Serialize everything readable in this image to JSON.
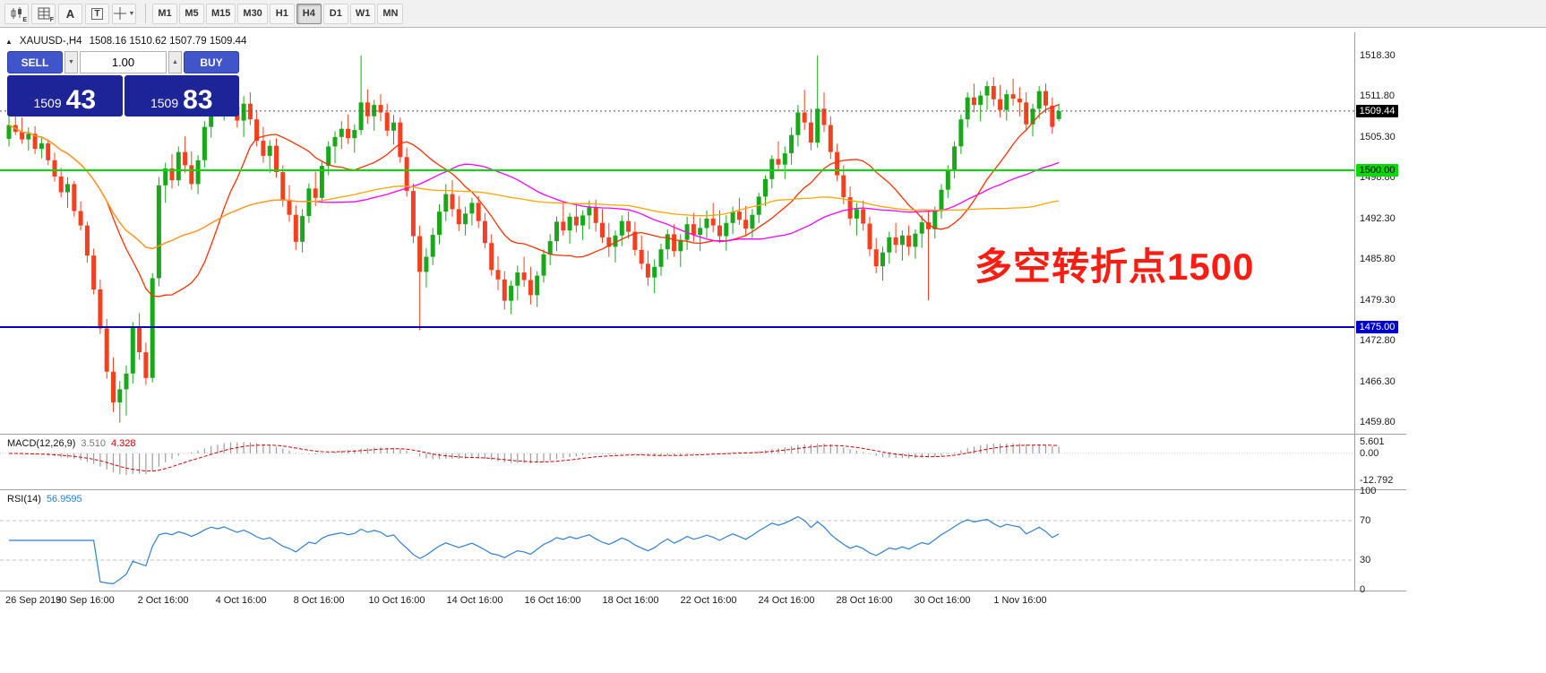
{
  "icons": {
    "marker_up": "▲",
    "dropdown": "▼",
    "spin_down": "▼",
    "spin_up": "▲"
  },
  "toolbar": {
    "tools": [
      {
        "name": "candlestick-chart-icon",
        "badge": "E"
      },
      {
        "name": "grid-icon",
        "badge": "F"
      },
      {
        "name": "font-tool-icon",
        "label": "A"
      },
      {
        "name": "text-label-tool-icon",
        "label": "T"
      },
      {
        "name": "crosshair-tool-icon",
        "label": ""
      }
    ],
    "timeframes": [
      "M1",
      "M5",
      "M15",
      "M30",
      "H1",
      "H4",
      "D1",
      "W1",
      "MN"
    ],
    "active_timeframe": "H4"
  },
  "chart_header": {
    "symbol": "XAUUSD-,H4",
    "ohlc": "1508.16 1510.62 1507.79 1509.44"
  },
  "trade_panel": {
    "sell_label": "SELL",
    "buy_label": "BUY",
    "volume": "1.00",
    "bid_main": "1509",
    "bid_pips": "43",
    "ask_main": "1509",
    "ask_pips": "83"
  },
  "annotation": {
    "text": "多空转折点1500",
    "color": "#fb1c12"
  },
  "price_scale": {
    "ticks": [
      "1518.30",
      "1511.80",
      "1505.30",
      "1498.80",
      "1492.30",
      "1485.80",
      "1479.30",
      "1472.80",
      "1466.30",
      "1459.80"
    ],
    "current_badge": {
      "text": "1509.44",
      "bg": "#000000",
      "fg": "#ffffff"
    },
    "green_badge": {
      "text": "1500.00",
      "bg": "#00dc00",
      "fg": "#000000"
    },
    "blue_badge": {
      "text": "1475.00",
      "bg": "#0000cc",
      "fg": "#ffffff"
    }
  },
  "macd_panel": {
    "label": "MACD(12,26,9)",
    "main_value": "3.510",
    "signal_value": "4.328",
    "scale": [
      "5.601",
      "0.00",
      "-12.792"
    ]
  },
  "rsi_panel": {
    "label": "RSI(14)",
    "value": "56.9595",
    "scale": [
      "100",
      "70",
      "30",
      "0"
    ]
  },
  "time_axis": {
    "labels": [
      "26 Sep 2019",
      "30 Sep 16:00",
      "2 Oct 16:00",
      "4 Oct 16:00",
      "8 Oct 16:00",
      "10 Oct 16:00",
      "14 Oct 16:00",
      "16 Oct 16:00",
      "18 Oct 16:00",
      "22 Oct 16:00",
      "24 Oct 16:00",
      "28 Oct 16:00",
      "30 Oct 16:00",
      "1 Nov 16:00"
    ]
  },
  "chart_data": {
    "type": "candlestick",
    "symbol": "XAUUSD-",
    "timeframe": "H4",
    "current_price": 1509.44,
    "ohlc_current": {
      "open": 1508.16,
      "high": 1510.62,
      "low": 1507.79,
      "close": 1509.44
    },
    "y_axis": {
      "min": 1458.3,
      "max": 1521.7,
      "tick_step": 6.5
    },
    "colors": {
      "up": "#19a819",
      "down": "#f4401f"
    },
    "horizontal_lines": [
      {
        "price": 1500.0,
        "color": "#00dc00",
        "label": "1500.00"
      },
      {
        "price": 1475.0,
        "color": "#0000bb",
        "label": "1475.00"
      }
    ],
    "moving_averages": [
      {
        "name": "ma-fast",
        "window": 16,
        "color": "#ff3000"
      },
      {
        "name": "ma-medium",
        "window": 48,
        "color": "#ff00ff"
      },
      {
        "name": "ma-slow",
        "window": 96,
        "color": "#ffa500"
      }
    ],
    "macd": {
      "params": "12,26,9",
      "main": 3.51,
      "signal": 4.328,
      "range": [
        -12.792,
        5.601
      ]
    },
    "rsi": {
      "period": 14,
      "value": 56.9595,
      "levels": [
        70,
        30
      ],
      "range": [
        0,
        100
      ],
      "color": "#2f80d0"
    },
    "candles": [
      [
        1505.0,
        1510.6,
        1503.8,
        1507.2
      ],
      [
        1507.2,
        1509.8,
        1505.6,
        1506.1
      ],
      [
        1506.1,
        1508.4,
        1504.2,
        1504.9
      ],
      [
        1504.9,
        1506.8,
        1503.1,
        1505.8
      ],
      [
        1505.8,
        1507.0,
        1502.6,
        1503.4
      ],
      [
        1503.4,
        1505.2,
        1501.9,
        1504.3
      ],
      [
        1504.3,
        1504.9,
        1500.8,
        1501.6
      ],
      [
        1501.6,
        1502.8,
        1498.2,
        1499.0
      ],
      [
        1499.0,
        1500.4,
        1495.7,
        1496.5
      ],
      [
        1496.5,
        1498.9,
        1494.0,
        1497.8
      ],
      [
        1497.8,
        1498.3,
        1492.6,
        1493.5
      ],
      [
        1493.5,
        1495.0,
        1490.4,
        1491.2
      ],
      [
        1491.2,
        1491.8,
        1485.3,
        1486.4
      ],
      [
        1486.4,
        1487.5,
        1480.2,
        1481.0
      ],
      [
        1481.0,
        1482.6,
        1473.9,
        1474.8
      ],
      [
        1474.8,
        1476.3,
        1466.8,
        1467.9
      ],
      [
        1467.9,
        1470.2,
        1461.5,
        1463.0
      ],
      [
        1463.0,
        1466.4,
        1459.8,
        1465.1
      ],
      [
        1465.1,
        1468.9,
        1460.9,
        1467.6
      ],
      [
        1467.6,
        1475.8,
        1466.0,
        1474.9
      ],
      [
        1474.9,
        1477.2,
        1469.8,
        1471.0
      ],
      [
        1471.0,
        1472.5,
        1465.8,
        1466.9
      ],
      [
        1466.9,
        1483.6,
        1466.2,
        1482.8
      ],
      [
        1482.8,
        1498.9,
        1481.5,
        1497.6
      ],
      [
        1497.6,
        1501.2,
        1494.8,
        1500.3
      ],
      [
        1500.3,
        1502.6,
        1497.1,
        1498.4
      ],
      [
        1498.4,
        1503.8,
        1497.5,
        1502.9
      ],
      [
        1502.9,
        1505.4,
        1499.6,
        1500.8
      ],
      [
        1500.8,
        1503.0,
        1496.9,
        1497.8
      ],
      [
        1497.8,
        1502.4,
        1496.2,
        1501.6
      ],
      [
        1501.6,
        1507.8,
        1500.4,
        1506.9
      ],
      [
        1506.9,
        1512.3,
        1505.2,
        1511.4
      ],
      [
        1511.4,
        1514.2,
        1508.6,
        1509.8
      ],
      [
        1509.8,
        1513.6,
        1507.9,
        1512.8
      ],
      [
        1512.8,
        1513.9,
        1509.1,
        1510.2
      ],
      [
        1510.2,
        1512.6,
        1506.8,
        1507.9
      ],
      [
        1507.9,
        1511.8,
        1505.3,
        1510.6
      ],
      [
        1510.6,
        1512.4,
        1507.2,
        1508.1
      ],
      [
        1508.1,
        1509.6,
        1503.8,
        1504.7
      ],
      [
        1504.7,
        1506.9,
        1501.2,
        1502.3
      ],
      [
        1502.3,
        1504.8,
        1499.6,
        1503.9
      ],
      [
        1503.9,
        1505.1,
        1498.8,
        1499.7
      ],
      [
        1499.7,
        1500.8,
        1494.2,
        1495.3
      ],
      [
        1495.3,
        1497.6,
        1491.8,
        1492.9
      ],
      [
        1492.9,
        1494.4,
        1487.3,
        1488.6
      ],
      [
        1488.6,
        1493.8,
        1486.9,
        1492.7
      ],
      [
        1492.7,
        1497.9,
        1491.6,
        1497.1
      ],
      [
        1497.1,
        1499.8,
        1494.3,
        1495.6
      ],
      [
        1495.6,
        1501.4,
        1494.8,
        1500.7
      ],
      [
        1500.7,
        1504.6,
        1499.2,
        1503.8
      ],
      [
        1503.8,
        1506.2,
        1501.1,
        1505.3
      ],
      [
        1505.3,
        1507.8,
        1503.4,
        1506.6
      ],
      [
        1506.6,
        1508.9,
        1504.2,
        1505.1
      ],
      [
        1505.1,
        1507.3,
        1502.8,
        1506.4
      ],
      [
        1506.4,
        1518.3,
        1505.6,
        1510.8
      ],
      [
        1510.8,
        1512.9,
        1507.4,
        1508.6
      ],
      [
        1508.6,
        1511.2,
        1506.3,
        1510.4
      ],
      [
        1510.4,
        1512.1,
        1507.8,
        1509.2
      ],
      [
        1509.2,
        1510.6,
        1505.4,
        1506.3
      ],
      [
        1506.3,
        1508.8,
        1504.1,
        1507.6
      ],
      [
        1507.6,
        1508.4,
        1501.2,
        1502.1
      ],
      [
        1502.1,
        1503.6,
        1495.8,
        1496.7
      ],
      [
        1496.7,
        1497.9,
        1488.4,
        1489.5
      ],
      [
        1489.5,
        1491.2,
        1474.5,
        1483.8
      ],
      [
        1483.8,
        1487.6,
        1481.3,
        1486.2
      ],
      [
        1486.2,
        1490.8,
        1484.9,
        1489.7
      ],
      [
        1489.7,
        1494.6,
        1488.2,
        1493.4
      ],
      [
        1493.4,
        1497.8,
        1491.9,
        1496.2
      ],
      [
        1496.2,
        1498.4,
        1492.6,
        1493.8
      ],
      [
        1493.8,
        1495.9,
        1490.3,
        1491.4
      ],
      [
        1491.4,
        1494.2,
        1489.6,
        1493.1
      ],
      [
        1493.1,
        1495.6,
        1491.2,
        1494.8
      ],
      [
        1494.8,
        1495.9,
        1490.8,
        1491.9
      ],
      [
        1491.9,
        1493.2,
        1487.6,
        1488.4
      ],
      [
        1488.4,
        1489.8,
        1483.2,
        1484.1
      ],
      [
        1484.1,
        1486.3,
        1480.9,
        1482.6
      ],
      [
        1482.6,
        1483.9,
        1477.8,
        1479.2
      ],
      [
        1479.2,
        1482.4,
        1477.1,
        1481.6
      ],
      [
        1481.6,
        1484.8,
        1479.3,
        1483.7
      ],
      [
        1483.7,
        1486.2,
        1481.4,
        1482.5
      ],
      [
        1482.5,
        1484.6,
        1478.6,
        1480.1
      ],
      [
        1480.1,
        1483.9,
        1478.2,
        1483.2
      ],
      [
        1483.2,
        1487.4,
        1482.1,
        1486.6
      ],
      [
        1486.6,
        1489.8,
        1484.9,
        1488.7
      ],
      [
        1488.7,
        1492.6,
        1487.1,
        1491.8
      ],
      [
        1491.8,
        1494.9,
        1489.6,
        1490.4
      ],
      [
        1490.4,
        1493.2,
        1488.3,
        1492.6
      ],
      [
        1492.6,
        1494.8,
        1490.1,
        1491.2
      ],
      [
        1491.2,
        1493.6,
        1488.9,
        1492.8
      ],
      [
        1492.8,
        1495.2,
        1490.6,
        1494.1
      ],
      [
        1494.1,
        1495.3,
        1490.2,
        1491.6
      ],
      [
        1491.6,
        1493.8,
        1488.4,
        1489.3
      ],
      [
        1489.3,
        1491.6,
        1486.2,
        1487.8
      ],
      [
        1487.8,
        1490.4,
        1485.3,
        1489.6
      ],
      [
        1489.6,
        1492.8,
        1487.9,
        1491.9
      ],
      [
        1491.9,
        1493.4,
        1489.1,
        1490.2
      ],
      [
        1490.2,
        1491.8,
        1486.4,
        1487.3
      ],
      [
        1487.3,
        1489.6,
        1484.2,
        1485.1
      ],
      [
        1485.1,
        1487.2,
        1481.6,
        1482.9
      ],
      [
        1482.9,
        1485.8,
        1480.4,
        1484.6
      ],
      [
        1484.6,
        1488.3,
        1483.2,
        1487.4
      ],
      [
        1487.4,
        1490.6,
        1485.8,
        1489.8
      ],
      [
        1489.8,
        1491.4,
        1486.2,
        1487.1
      ],
      [
        1487.1,
        1489.8,
        1484.6,
        1488.9
      ],
      [
        1488.9,
        1492.6,
        1487.3,
        1491.4
      ],
      [
        1491.4,
        1493.2,
        1488.6,
        1489.7
      ],
      [
        1489.7,
        1492.4,
        1487.1,
        1490.8
      ],
      [
        1490.8,
        1493.6,
        1489.2,
        1492.3
      ],
      [
        1492.3,
        1494.8,
        1490.1,
        1491.2
      ],
      [
        1491.2,
        1493.6,
        1488.4,
        1489.5
      ],
      [
        1489.5,
        1492.8,
        1487.2,
        1491.6
      ],
      [
        1491.6,
        1494.2,
        1489.8,
        1493.4
      ],
      [
        1493.4,
        1495.6,
        1491.3,
        1492.1
      ],
      [
        1492.1,
        1494.3,
        1489.6,
        1490.7
      ],
      [
        1490.7,
        1493.8,
        1489.2,
        1492.9
      ],
      [
        1492.9,
        1496.4,
        1491.6,
        1495.8
      ],
      [
        1495.8,
        1499.2,
        1494.3,
        1498.6
      ],
      [
        1498.6,
        1502.4,
        1497.1,
        1501.8
      ],
      [
        1501.8,
        1504.6,
        1499.8,
        1500.9
      ],
      [
        1500.9,
        1503.8,
        1498.6,
        1502.7
      ],
      [
        1502.7,
        1506.8,
        1500.9,
        1505.6
      ],
      [
        1505.6,
        1510.4,
        1503.8,
        1509.2
      ],
      [
        1509.2,
        1512.8,
        1506.4,
        1507.6
      ],
      [
        1507.6,
        1509.8,
        1503.2,
        1504.4
      ],
      [
        1504.4,
        1518.3,
        1503.6,
        1509.8
      ],
      [
        1509.8,
        1512.4,
        1506.1,
        1507.2
      ],
      [
        1507.2,
        1508.6,
        1501.8,
        1502.9
      ],
      [
        1502.9,
        1504.2,
        1498.3,
        1499.2
      ],
      [
        1499.2,
        1500.8,
        1494.6,
        1495.7
      ],
      [
        1495.7,
        1497.4,
        1491.2,
        1492.3
      ],
      [
        1492.3,
        1494.8,
        1489.6,
        1493.8
      ],
      [
        1493.8,
        1495.2,
        1490.4,
        1491.5
      ],
      [
        1491.5,
        1492.6,
        1486.3,
        1487.4
      ],
      [
        1487.4,
        1489.2,
        1483.6,
        1484.7
      ],
      [
        1484.7,
        1487.8,
        1482.4,
        1486.9
      ],
      [
        1486.9,
        1490.2,
        1485.1,
        1489.3
      ],
      [
        1489.3,
        1491.6,
        1486.8,
        1488.1
      ],
      [
        1488.1,
        1490.4,
        1485.6,
        1489.6
      ],
      [
        1489.6,
        1491.2,
        1486.4,
        1487.8
      ],
      [
        1487.8,
        1490.6,
        1485.9,
        1489.9
      ],
      [
        1489.9,
        1492.8,
        1487.6,
        1491.7
      ],
      [
        1491.7,
        1493.4,
        1479.3,
        1490.6
      ],
      [
        1490.6,
        1494.2,
        1489.1,
        1493.5
      ],
      [
        1493.5,
        1497.8,
        1492.3,
        1496.9
      ],
      [
        1496.9,
        1500.8,
        1495.6,
        1499.9
      ],
      [
        1499.9,
        1504.6,
        1498.7,
        1503.8
      ],
      [
        1503.8,
        1508.9,
        1502.6,
        1508.1
      ],
      [
        1508.1,
        1512.4,
        1506.8,
        1511.6
      ],
      [
        1511.6,
        1513.8,
        1509.2,
        1510.4
      ],
      [
        1510.4,
        1512.6,
        1507.8,
        1511.9
      ],
      [
        1511.9,
        1514.2,
        1509.6,
        1513.4
      ],
      [
        1513.4,
        1514.8,
        1510.2,
        1511.3
      ],
      [
        1511.3,
        1513.6,
        1508.4,
        1509.6
      ],
      [
        1509.6,
        1512.8,
        1507.9,
        1512.1
      ],
      [
        1512.1,
        1514.6,
        1510.3,
        1511.4
      ],
      [
        1511.4,
        1513.2,
        1508.6,
        1510.8
      ],
      [
        1510.8,
        1512.4,
        1506.2,
        1507.3
      ],
      [
        1507.3,
        1510.6,
        1505.4,
        1509.8
      ],
      [
        1509.8,
        1513.4,
        1508.2,
        1512.6
      ],
      [
        1512.6,
        1513.8,
        1509.1,
        1510.3
      ],
      [
        1510.3,
        1511.6,
        1505.8,
        1506.9
      ],
      [
        1508.16,
        1510.62,
        1507.79,
        1509.44
      ]
    ]
  }
}
